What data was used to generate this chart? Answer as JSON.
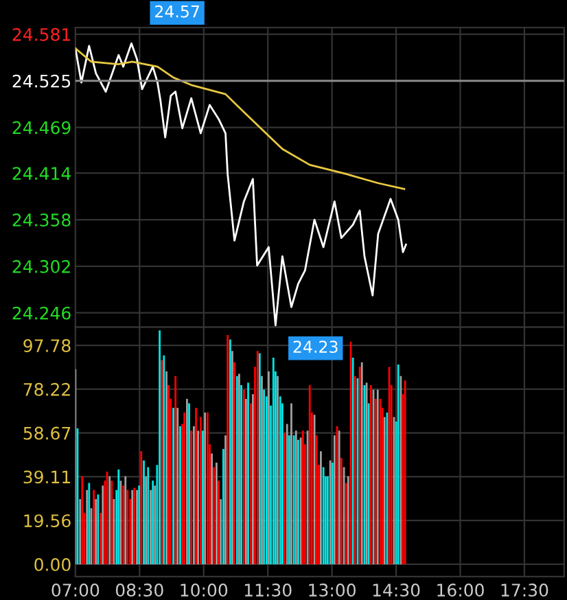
{
  "chart_data": [
    {
      "type": "line",
      "xlim": [
        7,
        18.43
      ],
      "ylim": [
        24.229,
        24.589
      ],
      "yticks": [
        24.581,
        24.525,
        24.469,
        24.414,
        24.358,
        24.302,
        24.246
      ],
      "xticks": [
        7,
        8.5,
        10,
        11.5,
        13,
        14.5,
        16,
        17.5
      ],
      "tick_labels": "y",
      "grid": true,
      "marker": "none",
      "line_style": "solid",
      "ref_lines": [
        {
          "axis": "y",
          "value": 24.525,
          "color": "#8a8a8a"
        }
      ],
      "series": [
        {
          "color": "#ffffff",
          "x": [
            7.0,
            7.14,
            7.32,
            7.48,
            7.71,
            8.01,
            8.12,
            8.31,
            8.44,
            8.56,
            8.81,
            8.92,
            8.99,
            9.1,
            9.23,
            9.34,
            9.5,
            9.71,
            9.93,
            10.14,
            10.35,
            10.51,
            10.56,
            10.72,
            10.94,
            11.15,
            11.25,
            11.52,
            11.68,
            11.84,
            12.05,
            12.21,
            12.37,
            12.59,
            12.8,
            13.06,
            13.22,
            13.49,
            13.65,
            13.76,
            13.95,
            14.08,
            14.37,
            14.55,
            14.66,
            14.73
          ],
          "values": [
            24.564,
            24.523,
            24.567,
            24.534,
            24.512,
            24.556,
            24.542,
            24.57,
            24.551,
            24.515,
            24.542,
            24.523,
            24.501,
            24.457,
            24.507,
            24.512,
            24.468,
            24.504,
            24.462,
            24.496,
            24.479,
            24.462,
            24.413,
            24.333,
            24.38,
            24.407,
            24.303,
            24.325,
            24.231,
            24.314,
            24.253,
            24.281,
            24.297,
            24.358,
            24.325,
            24.38,
            24.336,
            24.352,
            24.369,
            24.314,
            24.267,
            24.341,
            24.383,
            24.358,
            24.319,
            24.328
          ]
        },
        {
          "color": "#e8c840",
          "x": [
            7.0,
            7.37,
            8.01,
            8.33,
            8.92,
            9.29,
            9.71,
            10.51,
            10.99,
            11.84,
            12.48,
            13.33,
            14.08,
            14.69
          ],
          "values": [
            24.564,
            24.548,
            24.545,
            24.548,
            24.542,
            24.529,
            24.52,
            24.509,
            24.485,
            24.443,
            24.424,
            24.413,
            24.402,
            24.395
          ]
        }
      ],
      "annotations": [
        {
          "text": "24.57",
          "x": 8.31,
          "y": 24.57
        },
        {
          "text": "24.23",
          "x": 11.68,
          "y": 24.231
        }
      ]
    },
    {
      "type": "bar",
      "xlim": [
        7,
        18.43
      ],
      "ylim": [
        -5.5,
        106
      ],
      "yticks": [
        97.78,
        78.22,
        58.67,
        39.11,
        19.56,
        {
          "value": 0,
          "label": "0.00"
        }
      ],
      "xticks": [
        {
          "value": 7,
          "label": "07:00"
        },
        {
          "value": 8.5,
          "label": "08:30"
        },
        {
          "value": 10,
          "label": "10:00"
        },
        {
          "value": 11.5,
          "label": "11:30"
        },
        {
          "value": 13,
          "label": "13:00"
        },
        {
          "value": 14.5,
          "label": "14:30"
        },
        {
          "value": 16,
          "label": "16:00"
        },
        {
          "value": 17.5,
          "label": "17:30"
        }
      ],
      "grid": true,
      "x": [
        7.0,
        7.05,
        7.11,
        7.16,
        7.21,
        7.27,
        7.32,
        7.37,
        7.43,
        7.48,
        7.53,
        7.59,
        7.64,
        7.69,
        7.74,
        7.8,
        7.85,
        7.9,
        7.96,
        8.01,
        8.06,
        8.12,
        8.17,
        8.22,
        8.28,
        8.33,
        8.38,
        8.44,
        8.49,
        8.54,
        8.6,
        8.65,
        8.7,
        8.76,
        8.81,
        8.86,
        8.91,
        8.97,
        9.02,
        9.07,
        9.13,
        9.18,
        9.23,
        9.29,
        9.34,
        9.39,
        9.45,
        9.5,
        9.55,
        9.61,
        9.66,
        9.71,
        9.77,
        9.82,
        9.87,
        9.93,
        9.98,
        10.03,
        10.09,
        10.14,
        10.19,
        10.24,
        10.3,
        10.35,
        10.4,
        10.46,
        10.51,
        10.56,
        10.62,
        10.67,
        10.72,
        10.78,
        10.83,
        10.88,
        10.94,
        10.99,
        11.04,
        11.1,
        11.15,
        11.2,
        11.26,
        11.31,
        11.36,
        11.41,
        11.47,
        11.52,
        11.57,
        11.63,
        11.68,
        11.73,
        11.79,
        11.84,
        11.89,
        11.95,
        12.0,
        12.05,
        12.11,
        12.16,
        12.21,
        12.27,
        12.32,
        12.37,
        12.43,
        12.48,
        12.53,
        12.59,
        12.64,
        12.69,
        12.74,
        12.8,
        12.85,
        12.9,
        12.96,
        13.01,
        13.06,
        13.12,
        13.17,
        13.22,
        13.28,
        13.33,
        13.38,
        13.44,
        13.49,
        13.54,
        13.6,
        13.65,
        13.7,
        13.76,
        13.81,
        13.86,
        13.91,
        13.97,
        14.02,
        14.07,
        14.13,
        14.18,
        14.23,
        14.29,
        14.34,
        14.39,
        14.45,
        14.5,
        14.55,
        14.61,
        14.66,
        14.71
      ],
      "values": [
        87.2,
        60.7,
        29.1,
        39.3,
        23.0,
        33.2,
        36.3,
        25.1,
        33.2,
        29.1,
        31.2,
        23.0,
        35.2,
        37.3,
        41.4,
        39.3,
        37.3,
        29.1,
        33.2,
        42.4,
        37.3,
        35.2,
        39.3,
        33.2,
        29.1,
        33.2,
        34.2,
        33.2,
        35.2,
        50.5,
        46.4,
        39.3,
        43.4,
        33.2,
        37.3,
        35.2,
        44.4,
        104.5,
        91.2,
        93.3,
        86.2,
        80.0,
        73.9,
        69.9,
        84.1,
        69.9,
        61.7,
        62.7,
        67.8,
        73.9,
        71.9,
        59.7,
        61.7,
        69.9,
        59.7,
        65.8,
        59.7,
        67.8,
        67.8,
        53.6,
        49.5,
        43.4,
        45.4,
        37.3,
        29.1,
        51.5,
        57.6,
        102.4,
        100.4,
        95.3,
        90.2,
        84.1,
        85.1,
        80.0,
        78.0,
        73.9,
        81.1,
        71.9,
        76.0,
        88.2,
        95.3,
        94.3,
        84.1,
        78.0,
        75.0,
        86.2,
        70.9,
        92.3,
        86.2,
        84.1,
        75.0,
        71.9,
        58.7,
        62.7,
        57.6,
        71.9,
        57.6,
        59.7,
        55.6,
        56.6,
        59.7,
        53.6,
        59.7,
        80.0,
        67.8,
        66.8,
        57.6,
        44.4,
        50.5,
        43.4,
        39.3,
        39.3,
        46.4,
        45.4,
        57.6,
        61.7,
        59.7,
        47.5,
        43.4,
        36.3,
        39.3,
        99.4,
        92.3,
        84.1,
        83.1,
        88.2,
        90.2,
        80.0,
        81.1,
        71.9,
        80.0,
        78.0,
        73.9,
        78.0,
        73.9,
        69.9,
        65.8,
        67.8,
        88.2,
        80.0,
        65.8,
        63.8,
        89.2,
        84.1,
        76.0,
        82.1
      ],
      "colors": [
        "#a0a0a0",
        "#00e5e5",
        "#a0a0a0",
        "#ff0000",
        "#ff0000",
        "#a0a0a0",
        "#00e5e5",
        "#a0a0a0",
        "#ff0000",
        "#a0a0a0",
        "#00e5e5",
        "#ff0000",
        "#a0a0a0",
        "#ff0000",
        "#ff0000",
        "#a0a0a0",
        "#ff0000",
        "#a0a0a0",
        "#00e5e5",
        "#00e5e5",
        "#a0a0a0",
        "#ff0000",
        "#a0a0a0",
        "#ff0000",
        "#ff0000",
        "#a0a0a0",
        "#ff0000",
        "#a0a0a0",
        "#00e5e5",
        "#ff0000",
        "#00e5e5",
        "#a0a0a0",
        "#00e5e5",
        "#a0a0a0",
        "#00e5e5",
        "#a0a0a0",
        "#00e5e5",
        "#00e5e5",
        "#ff0000",
        "#00e5e5",
        "#a0a0a0",
        "#ff0000",
        "#ff0000",
        "#00e5e5",
        "#ff0000",
        "#a0a0a0",
        "#00e5e5",
        "#ff0000",
        "#ff0000",
        "#a0a0a0",
        "#00e5e5",
        "#ff0000",
        "#a0a0a0",
        "#ff0000",
        "#a0a0a0",
        "#ff0000",
        "#00e5e5",
        "#a0a0a0",
        "#ff0000",
        "#ff0000",
        "#a0a0a0",
        "#ff0000",
        "#a0a0a0",
        "#ff0000",
        "#a0a0a0",
        "#00e5e5",
        "#a0a0a0",
        "#ff0000",
        "#00e5e5",
        "#a0a0a0",
        "#ff0000",
        "#00e5e5",
        "#a0a0a0",
        "#00e5e5",
        "#ff0000",
        "#a0a0a0",
        "#00e5e5",
        "#ff0000",
        "#a0a0a0",
        "#ff0000",
        "#ff0000",
        "#00e5e5",
        "#a0a0a0",
        "#00e5e5",
        "#00e5e5",
        "#a0a0a0",
        "#00e5e5",
        "#00e5e5",
        "#00e5e5",
        "#a0a0a0",
        "#00e5e5",
        "#00e5e5",
        "#ff0000",
        "#a0a0a0",
        "#00e5e5",
        "#a0a0a0",
        "#00e5e5",
        "#a0a0a0",
        "#00e5e5",
        "#a0a0a0",
        "#ff0000",
        "#ff0000",
        "#a0a0a0",
        "#ff0000",
        "#ff0000",
        "#a0a0a0",
        "#ff0000",
        "#ff0000",
        "#a0a0a0",
        "#00e5e5",
        "#00e5e5",
        "#00e5e5",
        "#a0a0a0",
        "#00e5e5",
        "#a0a0a0",
        "#ff0000",
        "#a0a0a0",
        "#ff0000",
        "#a0a0a0",
        "#ff0000",
        "#a0a0a0",
        "#ff0000",
        "#00e5e5",
        "#ff0000",
        "#00e5e5",
        "#ff0000",
        "#a0a0a0",
        "#00e5e5",
        "#a0a0a0",
        "#00e5e5",
        "#ff0000",
        "#a0a0a0",
        "#ff0000",
        "#a0a0a0",
        "#ff0000",
        "#ff0000",
        "#a0a0a0",
        "#00e5e5",
        "#ff0000",
        "#ff0000",
        "#a0a0a0",
        "#00e5e5",
        "#00e5e5",
        "#a0a0a0",
        "#ff0000",
        "#ff0000"
      ]
    }
  ]
}
